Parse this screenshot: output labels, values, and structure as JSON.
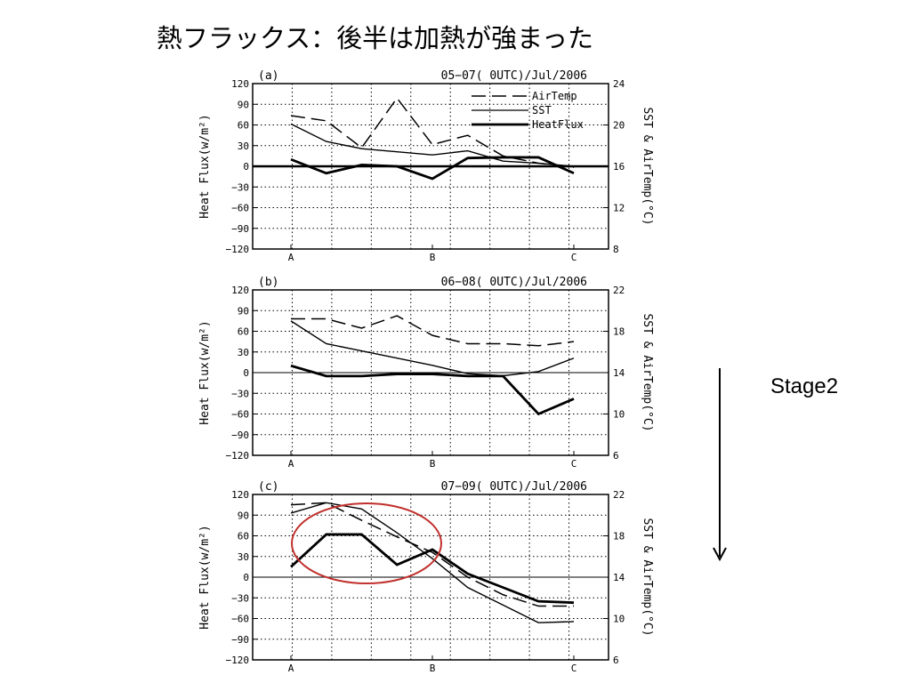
{
  "slide": {
    "title": "熱フラックス：後半は加熱が強まった",
    "stage_label": "Stage2"
  },
  "chart_data": [
    {
      "type": "line",
      "panel_label": "(a)",
      "title": "05−07( 0UTC)/Jul/2006",
      "ylabel": "Heat Flux(w/m²)",
      "y2label": "SST & AirTemp(°C)",
      "ylim": [
        -120,
        120
      ],
      "yticks": [
        -120,
        -90,
        -60,
        -30,
        0,
        30,
        60,
        90,
        120
      ],
      "ytick_labels": [
        "−120",
        "−90",
        "−60",
        "−30",
        "0",
        "30",
        "60",
        "90",
        "120"
      ],
      "y2lim": [
        8,
        24
      ],
      "y2ticks": [
        8,
        12,
        16,
        20,
        24
      ],
      "xlim": [
        0,
        1
      ],
      "xtick_labels": [
        {
          "pos": 0,
          "text": "A"
        },
        {
          "pos": 0.5,
          "text": "B"
        },
        {
          "pos": 1,
          "text": "C"
        }
      ],
      "legend": [
        "AirTemp",
        "SST",
        "HeatFlux"
      ],
      "x": [
        0,
        0.125,
        0.25,
        0.375,
        0.5,
        0.625,
        0.75,
        0.875,
        1
      ],
      "series": [
        {
          "name": "AirTemp",
          "axis": "right",
          "style": "dashed",
          "values": [
            20.9,
            20.4,
            17.8,
            22.6,
            18.1,
            19.0,
            17.0,
            16.3,
            15.9
          ]
        },
        {
          "name": "SST",
          "axis": "right",
          "style": "thin",
          "values": [
            20.1,
            18.4,
            17.7,
            17.4,
            17.1,
            17.5,
            16.5,
            16.3,
            16.0
          ]
        },
        {
          "name": "HeatFlux",
          "axis": "left",
          "style": "bold",
          "values": [
            10,
            -10,
            2,
            0,
            -18,
            12,
            13,
            13,
            -10
          ]
        }
      ]
    },
    {
      "type": "line",
      "panel_label": "(b)",
      "title": "06−08( 0UTC)/Jul/2006",
      "ylabel": "Heat Flux(w/m²)",
      "y2label": "SST & AirTemp(°C)",
      "ylim": [
        -120,
        120
      ],
      "yticks": [
        -120,
        -90,
        -60,
        -30,
        0,
        30,
        60,
        90,
        120
      ],
      "ytick_labels": [
        "−120",
        "−90",
        "−60",
        "−30",
        "0",
        "30",
        "60",
        "90",
        "120"
      ],
      "y2lim": [
        6,
        22
      ],
      "y2ticks": [
        6,
        10,
        14,
        18,
        22
      ],
      "xlim": [
        0,
        1
      ],
      "xtick_labels": [
        {
          "pos": 0,
          "text": "A"
        },
        {
          "pos": 0.5,
          "text": "B"
        },
        {
          "pos": 1,
          "text": "C"
        }
      ],
      "legend": [],
      "x": [
        0,
        0.125,
        0.25,
        0.375,
        0.5,
        0.625,
        0.75,
        0.875,
        1
      ],
      "series": [
        {
          "name": "AirTemp",
          "axis": "right",
          "style": "dashed",
          "values": [
            19.2,
            19.2,
            18.3,
            19.5,
            17.6,
            16.8,
            16.8,
            16.6,
            17.0
          ]
        },
        {
          "name": "SST",
          "axis": "right",
          "style": "thin",
          "values": [
            19.0,
            16.8,
            16.1,
            15.4,
            14.7,
            13.9,
            13.7,
            14.1,
            15.4
          ]
        },
        {
          "name": "HeatFlux",
          "axis": "left",
          "style": "bold",
          "values": [
            10,
            -5,
            -5,
            -2,
            -2,
            -5,
            -5,
            -60,
            -38
          ]
        }
      ]
    },
    {
      "type": "line",
      "panel_label": "(c)",
      "title": "07−09( 0UTC)/Jul/2006",
      "ylabel": "Heat Flux(w/m²)",
      "y2label": "SST & AirTemp(°C)",
      "ylim": [
        -120,
        120
      ],
      "yticks": [
        -120,
        -90,
        -60,
        -30,
        0,
        30,
        60,
        90,
        120
      ],
      "ytick_labels": [
        "−120",
        "−90",
        "−60",
        "−30",
        "0",
        "30",
        "60",
        "90",
        "120"
      ],
      "y2lim": [
        6,
        22
      ],
      "y2ticks": [
        6,
        10,
        14,
        18,
        22
      ],
      "xlim": [
        0,
        1
      ],
      "xtick_labels": [
        {
          "pos": 0,
          "text": "A"
        },
        {
          "pos": 0.5,
          "text": "B"
        },
        {
          "pos": 1,
          "text": "C"
        }
      ],
      "legend": [],
      "x": [
        0,
        0.125,
        0.25,
        0.375,
        0.5,
        0.625,
        0.75,
        0.875,
        1
      ],
      "series": [
        {
          "name": "AirTemp",
          "axis": "right",
          "style": "dashed",
          "values": [
            21.0,
            21.2,
            19.5,
            17.9,
            16.4,
            14.0,
            12.3,
            11.2,
            11.2
          ]
        },
        {
          "name": "SST",
          "axis": "right",
          "style": "thin",
          "values": [
            20.2,
            21.2,
            20.6,
            18.3,
            15.8,
            13.0,
            11.3,
            9.6,
            9.7
          ]
        },
        {
          "name": "HeatFlux",
          "axis": "left",
          "style": "bold",
          "values": [
            15,
            62,
            62,
            18,
            40,
            5,
            -15,
            -35,
            -37
          ]
        }
      ],
      "annotation": {
        "shape": "ellipse",
        "color": "#c0302c"
      }
    }
  ]
}
